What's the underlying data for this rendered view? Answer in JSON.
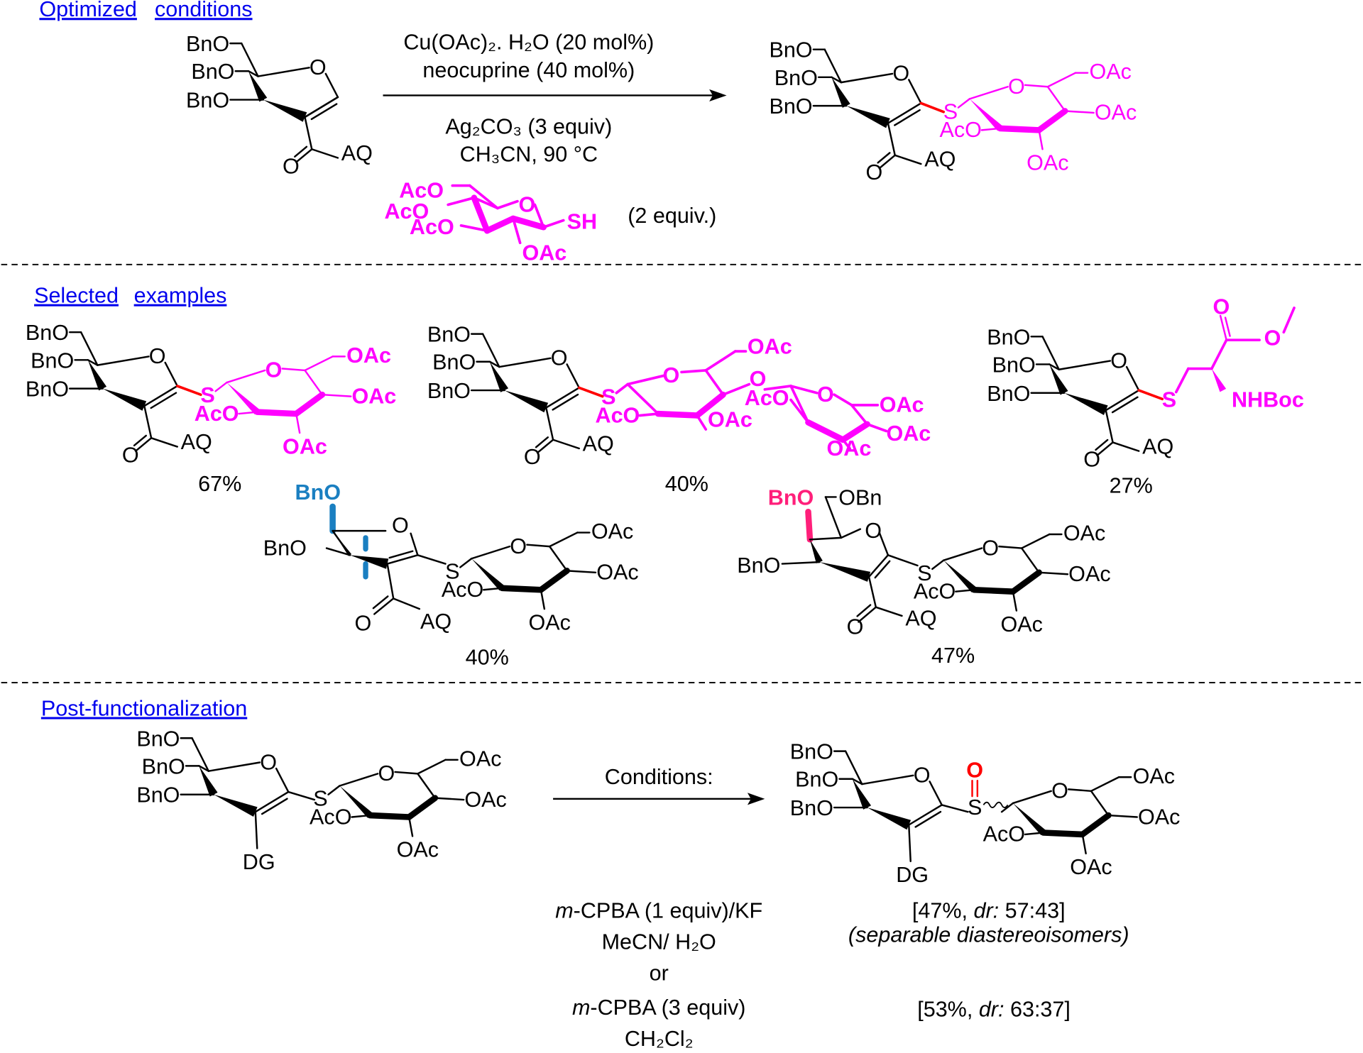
{
  "colors": {
    "link": "#0000ee",
    "magenta": "#ff00ff",
    "red": "#ff0000",
    "blue": "#1a7fc1",
    "pink": "#ff1f7a",
    "black": "#000000"
  },
  "sections": {
    "optimized": [
      "Optimized",
      "conditions"
    ],
    "selected": [
      "Selected",
      "examples"
    ],
    "post": [
      "Post-functionalization"
    ]
  },
  "scheme1": {
    "reactant": {
      "glycal": [
        "BnO",
        "BnO",
        "BnO",
        "O",
        "O",
        "AQ"
      ]
    },
    "reagents_above": [
      "Cu(OAc)₂. H₂O (20 mol%)",
      "neocuprine (40 mol%)"
    ],
    "reagents_below": [
      "Ag₂CO₃ (3 equiv)",
      "CH₃CN, 90 °C"
    ],
    "thiol": {
      "labels": [
        "AcO",
        "AcO",
        "AcO",
        "O",
        "SH",
        "OAc"
      ],
      "equiv": "(2 equiv.)"
    },
    "product": {
      "glycal": [
        "BnO",
        "BnO",
        "BnO",
        "O",
        "O",
        "AQ"
      ],
      "sugar": [
        "S",
        "O",
        "OAc",
        "OAc",
        "OAc",
        "AcO"
      ]
    }
  },
  "examples": [
    {
      "glycal": [
        "BnO",
        "BnO",
        "BnO",
        "O",
        "O",
        "AQ"
      ],
      "sugar": [
        "S",
        "O",
        "OAc",
        "OAc",
        "OAc",
        "AcO"
      ],
      "yield": "67%"
    },
    {
      "glycal": [
        "BnO",
        "BnO",
        "BnO",
        "O",
        "O",
        "AQ"
      ],
      "sugar": [
        "S",
        "O",
        "OAc",
        "O",
        "OAc",
        "AcO"
      ],
      "sugar2": [
        "O",
        "AcO",
        "OAc",
        "OAc",
        "OAc"
      ],
      "yield": "40%"
    },
    {
      "glycal": [
        "BnO",
        "BnO",
        "BnO",
        "O",
        "O",
        "AQ"
      ],
      "cys": [
        "S",
        "O",
        "O",
        "NHBoc"
      ],
      "yield": "27%"
    },
    {
      "furanose": [
        "BnO",
        "BnO",
        "O",
        "O",
        "AQ"
      ],
      "sugar": [
        "S",
        "O",
        "OAc",
        "OAc",
        "OAc",
        "AcO"
      ],
      "yield": "40%"
    },
    {
      "galactal": [
        "BnO",
        "OBn",
        "BnO",
        "O",
        "O",
        "AQ"
      ],
      "sugar": [
        "S",
        "O",
        "OAc",
        "OAc",
        "OAc",
        "AcO"
      ],
      "yield": "47%"
    }
  ],
  "post": {
    "reactant": {
      "glycal": [
        "BnO",
        "BnO",
        "BnO",
        "O",
        "DG"
      ],
      "sugar": [
        "S",
        "O",
        "OAc",
        "OAc",
        "OAc",
        "AcO"
      ]
    },
    "arrow_label": "Conditions:",
    "product": {
      "glycal": [
        "BnO",
        "BnO",
        "BnO",
        "O",
        "DG"
      ],
      "sugar": [
        "S",
        "O",
        "OAc",
        "OAc",
        "OAc",
        "AcO"
      ],
      "sulfoxide_o": "O"
    },
    "condition1": {
      "italic": "m",
      "text": "-CPBA (1 equiv)/KF",
      "solvent": "MeCN/ H₂O"
    },
    "or": "or",
    "condition2": {
      "italic": "m",
      "text": "-CPBA (3 equiv)",
      "solvent": "CH₂Cl₂"
    },
    "result1": {
      "pre": "[47%, ",
      "italic": "dr:",
      "post": " 57:43]",
      "note": "(separable diastereoisomers)"
    },
    "result2": {
      "pre": "[53%, ",
      "italic": "dr:",
      "post": " 63:37]"
    }
  }
}
